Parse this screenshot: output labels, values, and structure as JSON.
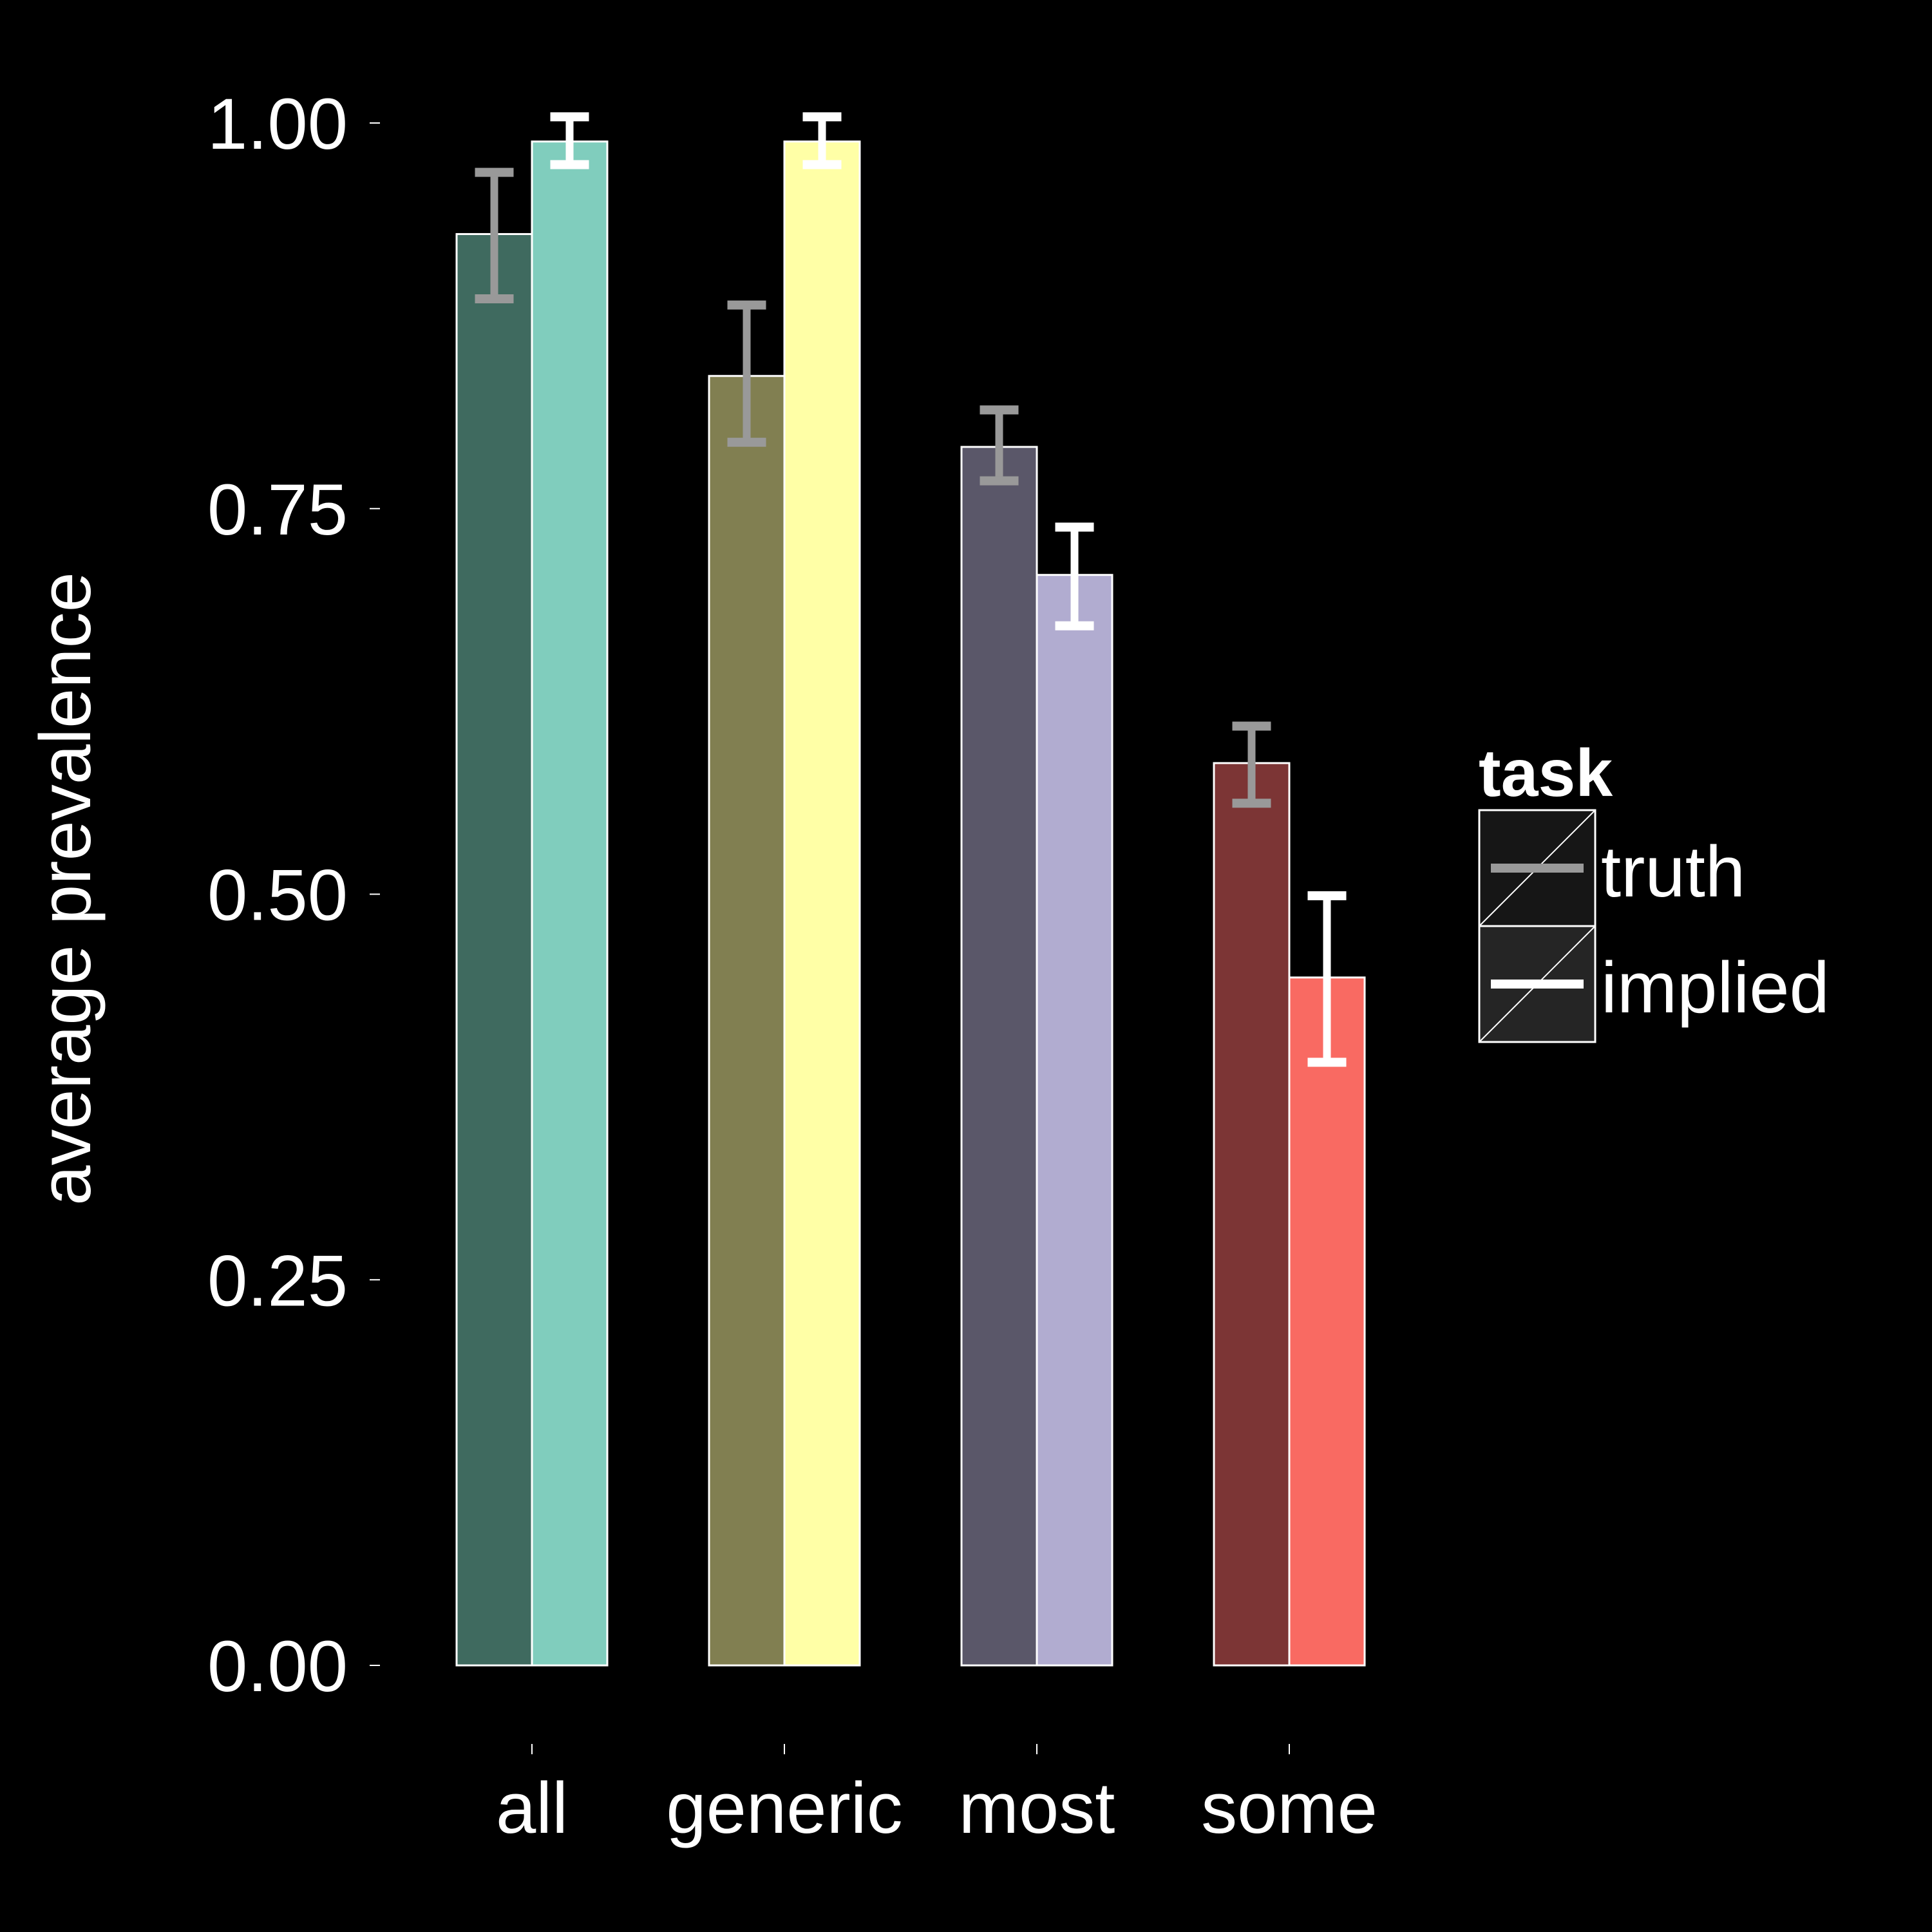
{
  "chart_data": {
    "type": "bar",
    "ylabel": "average prevalence",
    "xlabel": "",
    "ylim": [
      -0.05,
      1.05
    ],
    "y_ticks": [
      0,
      0.25,
      0.5,
      0.75,
      1.0
    ],
    "y_tick_labels": [
      "0.00",
      "0.25",
      "0.50",
      "0.75",
      "1.00"
    ],
    "categories": [
      "all",
      "generic",
      "most",
      "some"
    ],
    "legend": {
      "title": "task",
      "placement": "right",
      "entries": [
        "truth",
        "implied"
      ]
    },
    "series": [
      {
        "name": "truth",
        "values": [
          0.928,
          0.836,
          0.79,
          0.585
        ],
        "error_low": [
          0.886,
          0.793,
          0.768,
          0.559
        ],
        "error_high": [
          0.968,
          0.882,
          0.814,
          0.609
        ],
        "colors": [
          "#3f6a5f",
          "#817f51",
          "#5a5769",
          "#7c3535"
        ],
        "errorbar_color": "#999999"
      },
      {
        "name": "implied",
        "values": [
          0.988,
          0.988,
          0.707,
          0.446
        ],
        "error_low": [
          0.973,
          0.973,
          0.674,
          0.391
        ],
        "error_high": [
          1.004,
          1.004,
          0.738,
          0.499
        ],
        "colors": [
          "#80cdbd",
          "#ffffa6",
          "#b1acd0",
          "#f96a62"
        ],
        "errorbar_color": "#ffffff"
      }
    ]
  }
}
